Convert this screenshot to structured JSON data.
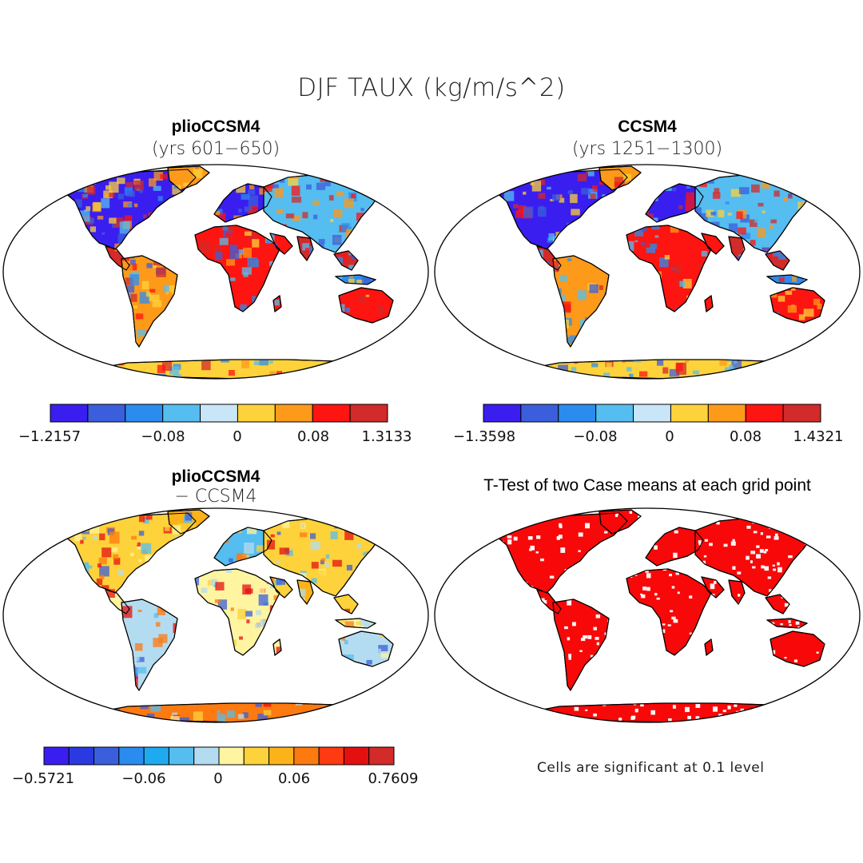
{
  "title": "DJF TAUX (kg/m/s^2)",
  "panels": {
    "top_left": {
      "title": "plioCCSM4",
      "subtitle": "(yrs 601−650)"
    },
    "top_right": {
      "title": "CCSM4",
      "subtitle": "(yrs 1251−1300)"
    },
    "bottom_left": {
      "title": "plioCCSM4",
      "subtitle": "− CCSM4"
    },
    "bottom_right": {
      "title": "T-Test of two Case means at each grid point",
      "note": "Cells are significant at 0.1 level"
    }
  },
  "colorbars": {
    "top_left": {
      "colors": [
        "#3a1ef0",
        "#3b5fdc",
        "#2b8cf0",
        "#55bdf0",
        "#c8e6f8",
        "#fed23a",
        "#fd9a1a",
        "#fe1410",
        "#d32a2a"
      ],
      "labels": [
        "−1.2157",
        "−0.08",
        "0",
        "0.08",
        "1.3133"
      ]
    },
    "top_right": {
      "colors": [
        "#3a1ef0",
        "#3b5fdc",
        "#2b8cf0",
        "#55bdf0",
        "#c8e6f8",
        "#fed23a",
        "#fd9a1a",
        "#fe1410",
        "#d32a2a"
      ],
      "labels": [
        "−1.3598",
        "−0.08",
        "0",
        "0.08",
        "1.4321"
      ]
    },
    "bottom_left": {
      "colors": [
        "#3a1ef0",
        "#2b3ae0",
        "#3b5fdc",
        "#2b8cf0",
        "#1eaaf0",
        "#55bdf0",
        "#b4dcf0",
        "#fff4a0",
        "#fed23a",
        "#fdb21a",
        "#fd7a10",
        "#fe3a10",
        "#e41010",
        "#d32a2a"
      ],
      "labels": [
        "−0.5721",
        "−0.06",
        "0",
        "0.06",
        "0.7609"
      ]
    }
  },
  "map_colors": {
    "ocean": "#ffffff",
    "coast": "#000000",
    "significant": "#f80808"
  }
}
